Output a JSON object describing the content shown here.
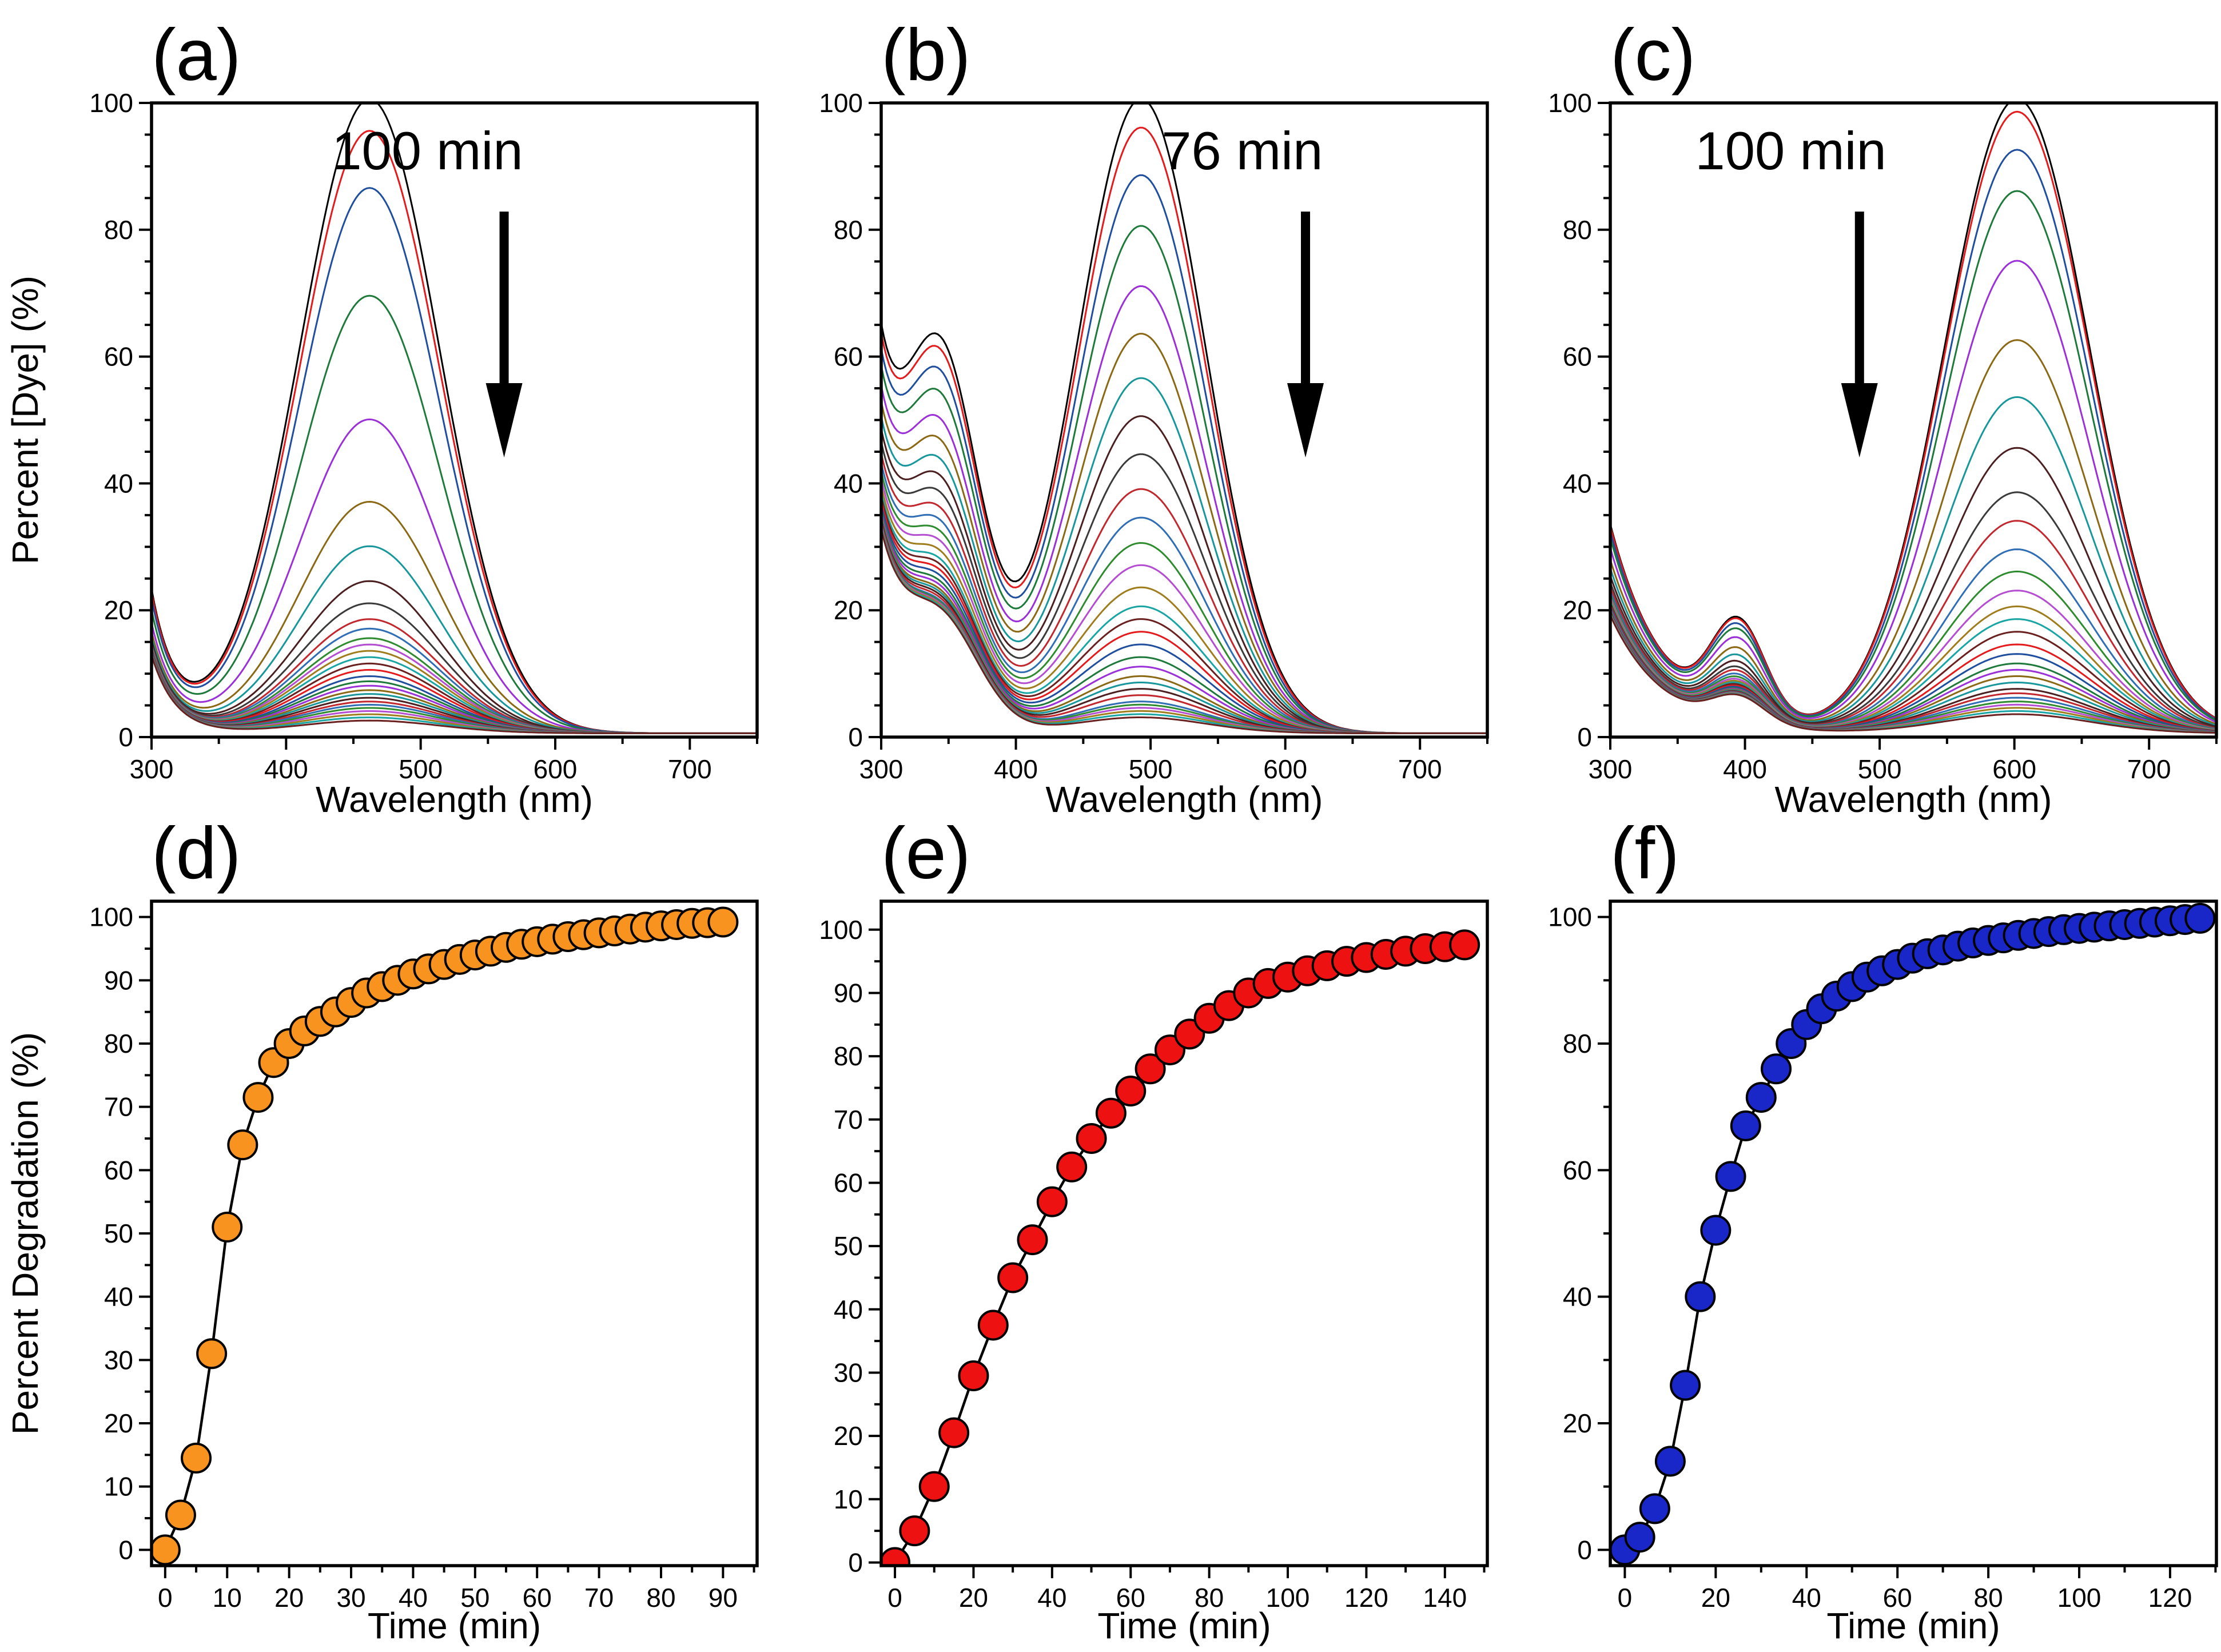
{
  "chart_data": [
    {
      "panel_label": "(a)",
      "type": "line",
      "title": "",
      "xlabel": "Wavelength (nm)",
      "ylabel": "Percent [Dye] (%)",
      "xlim": [
        300,
        750
      ],
      "ylim": [
        0,
        100
      ],
      "xticks": [
        "300",
        "400",
        "500",
        "600",
        "700"
      ],
      "yticks": [
        "0",
        "20",
        "40",
        "60",
        "80",
        "100"
      ],
      "annotation": "100 min",
      "arrow": "down",
      "peak_nm": 462,
      "peak_width_nm": 52,
      "shoulder_nm": 0,
      "shoulder_fraction": 0,
      "shoulder_width_nm": 25,
      "uv_start_at_300": 22,
      "uv_decay_nm": 18,
      "series_peaks": [
        100,
        95,
        86,
        69,
        49.5,
        36.5,
        29.5,
        24,
        20.5,
        18,
        16.5,
        15,
        14,
        13,
        12,
        11,
        10,
        9,
        8.2,
        7.5,
        6.8,
        6.2,
        5.6,
        5,
        4.5,
        4,
        3.5,
        3,
        2.5,
        2
      ]
    },
    {
      "panel_label": "(b)",
      "type": "line",
      "title": "",
      "xlabel": "Wavelength (nm)",
      "ylabel": "",
      "xlim": [
        300,
        750
      ],
      "ylim": [
        0,
        100
      ],
      "xticks": [
        "300",
        "400",
        "500",
        "600",
        "700"
      ],
      "yticks": [
        "0",
        "20",
        "40",
        "60",
        "80",
        "100"
      ],
      "annotation": "76 min",
      "arrow": "down",
      "peak_nm": 493,
      "peak_width_nm": 48,
      "shoulder_nm": 345,
      "shoulder_fraction": 0.56,
      "shoulder_width_nm": 28,
      "uv_start_at_300": 50,
      "uv_decay_nm": 25,
      "series_peaks": [
        100,
        95.5,
        88,
        80,
        70.5,
        63,
        56,
        50,
        44,
        38.5,
        34,
        30,
        26.5,
        23,
        20,
        18,
        16,
        14,
        12,
        10.5,
        9,
        8,
        7,
        6,
        5,
        4.5,
        4,
        3.5,
        3,
        2.5
      ]
    },
    {
      "panel_label": "(c)",
      "type": "line",
      "title": "",
      "xlabel": "Wavelength (nm)",
      "ylabel": "",
      "xlim": [
        300,
        750
      ],
      "ylim": [
        0,
        100
      ],
      "xticks": [
        "300",
        "400",
        "500",
        "600",
        "700"
      ],
      "yticks": [
        "0",
        "20",
        "40",
        "60",
        "80",
        "100"
      ],
      "annotation": "100 min",
      "arrow": "down",
      "peak_nm": 602,
      "peak_width_nm": 54,
      "shoulder_nm": 395,
      "shoulder_fraction": 0.16,
      "shoulder_width_nm": 20,
      "uv_start_at_300": 33,
      "uv_decay_nm": 40,
      "series_peaks": [
        100,
        98,
        92,
        85.5,
        74.5,
        62,
        53,
        45,
        38,
        33.5,
        29,
        25.5,
        22.5,
        20,
        18,
        16,
        14,
        12.5,
        11,
        10,
        9,
        8,
        7,
        6.3,
        5.6,
        5,
        4.5,
        4,
        3.5,
        3
      ]
    },
    {
      "panel_label": "(d)",
      "type": "scatter",
      "title": "",
      "xlabel": "Time (min)",
      "ylabel": "Percent Degradation (%)",
      "xlim": [
        -2.2,
        95.5
      ],
      "ylim": [
        -2.5,
        102.5
      ],
      "xticks": [
        "0",
        "10",
        "20",
        "30",
        "40",
        "50",
        "60",
        "70",
        "80",
        "90"
      ],
      "yticks": [
        "0",
        "10",
        "20",
        "30",
        "40",
        "50",
        "60",
        "70",
        "80",
        "90",
        "100"
      ],
      "marker_color": "#f7931e",
      "x": [
        0,
        2.5,
        5,
        7.5,
        10,
        12.5,
        15,
        17.5,
        20,
        22.5,
        25,
        27.5,
        30,
        32.5,
        35,
        37.5,
        40,
        42.5,
        45,
        47.5,
        50,
        52.5,
        55,
        57.5,
        60,
        62.5,
        65,
        67.5,
        70,
        72.5,
        75,
        77.5,
        80,
        82.5,
        85,
        87.5,
        90
      ],
      "y": [
        0,
        5.5,
        14.5,
        31,
        51,
        64,
        71.5,
        77,
        80,
        82,
        83.5,
        85,
        86.5,
        88,
        89,
        90,
        91,
        91.8,
        92.5,
        93.3,
        94,
        94.6,
        95.2,
        95.7,
        96.1,
        96.5,
        96.9,
        97.2,
        97.5,
        97.8,
        98.1,
        98.4,
        98.6,
        98.8,
        99,
        99.1,
        99.2
      ]
    },
    {
      "panel_label": "(e)",
      "type": "scatter",
      "title": "",
      "xlabel": "Time (min)",
      "ylabel": "",
      "xlim": [
        -3.5,
        150.8
      ],
      "ylim": [
        -0.5,
        104.5
      ],
      "xticks": [
        "0",
        "20",
        "40",
        "60",
        "80",
        "100",
        "120",
        "140"
      ],
      "yticks": [
        "0",
        "10",
        "20",
        "30",
        "40",
        "50",
        "60",
        "70",
        "80",
        "90",
        "100"
      ],
      "marker_color": "#ee1111",
      "x": [
        0,
        5,
        10,
        15,
        20,
        25,
        30,
        35,
        40,
        45,
        50,
        55,
        60,
        65,
        70,
        75,
        80,
        85,
        90,
        95,
        100,
        105,
        110,
        115,
        120,
        125,
        130,
        135,
        140,
        145
      ],
      "y": [
        0,
        5,
        12,
        20.5,
        29.5,
        37.5,
        45,
        51,
        57,
        62.5,
        67,
        71,
        74.5,
        78,
        81,
        83.5,
        86,
        88,
        90,
        91.5,
        92.5,
        93.5,
        94.3,
        95,
        95.6,
        96.1,
        96.6,
        97,
        97.3,
        97.6
      ]
    },
    {
      "panel_label": "(f)",
      "type": "scatter",
      "title": "",
      "xlabel": "Time (min)",
      "ylabel": "",
      "xlim": [
        -3.2,
        130.2
      ],
      "ylim": [
        -2.5,
        102.5
      ],
      "xticks": [
        "0",
        "20",
        "40",
        "60",
        "80",
        "100",
        "120"
      ],
      "yticks": [
        "0",
        "20",
        "40",
        "60",
        "80",
        "100"
      ],
      "marker_color": "#1a27c8",
      "x": [
        0,
        3.3,
        6.6,
        10,
        13.3,
        16.6,
        20,
        23.3,
        26.6,
        30,
        33.3,
        36.6,
        40,
        43.3,
        46.6,
        50,
        53.3,
        56.6,
        60,
        63.3,
        66.6,
        70,
        73.3,
        76.6,
        80,
        83.3,
        86.6,
        90,
        93.3,
        96.6,
        100,
        103.3,
        106.6,
        110,
        113.3,
        116.6,
        120,
        123.3,
        126.6
      ],
      "y": [
        0,
        2,
        6.5,
        14,
        26,
        40,
        50.5,
        59,
        67,
        71.5,
        76,
        80,
        83,
        85.5,
        87.5,
        89,
        90.5,
        91.5,
        92.5,
        93.5,
        94.2,
        94.8,
        95.4,
        95.9,
        96.3,
        96.7,
        97.1,
        97.4,
        97.7,
        98,
        98.2,
        98.4,
        98.6,
        98.8,
        99,
        99.2,
        99.4,
        99.6,
        99.8
      ]
    }
  ]
}
